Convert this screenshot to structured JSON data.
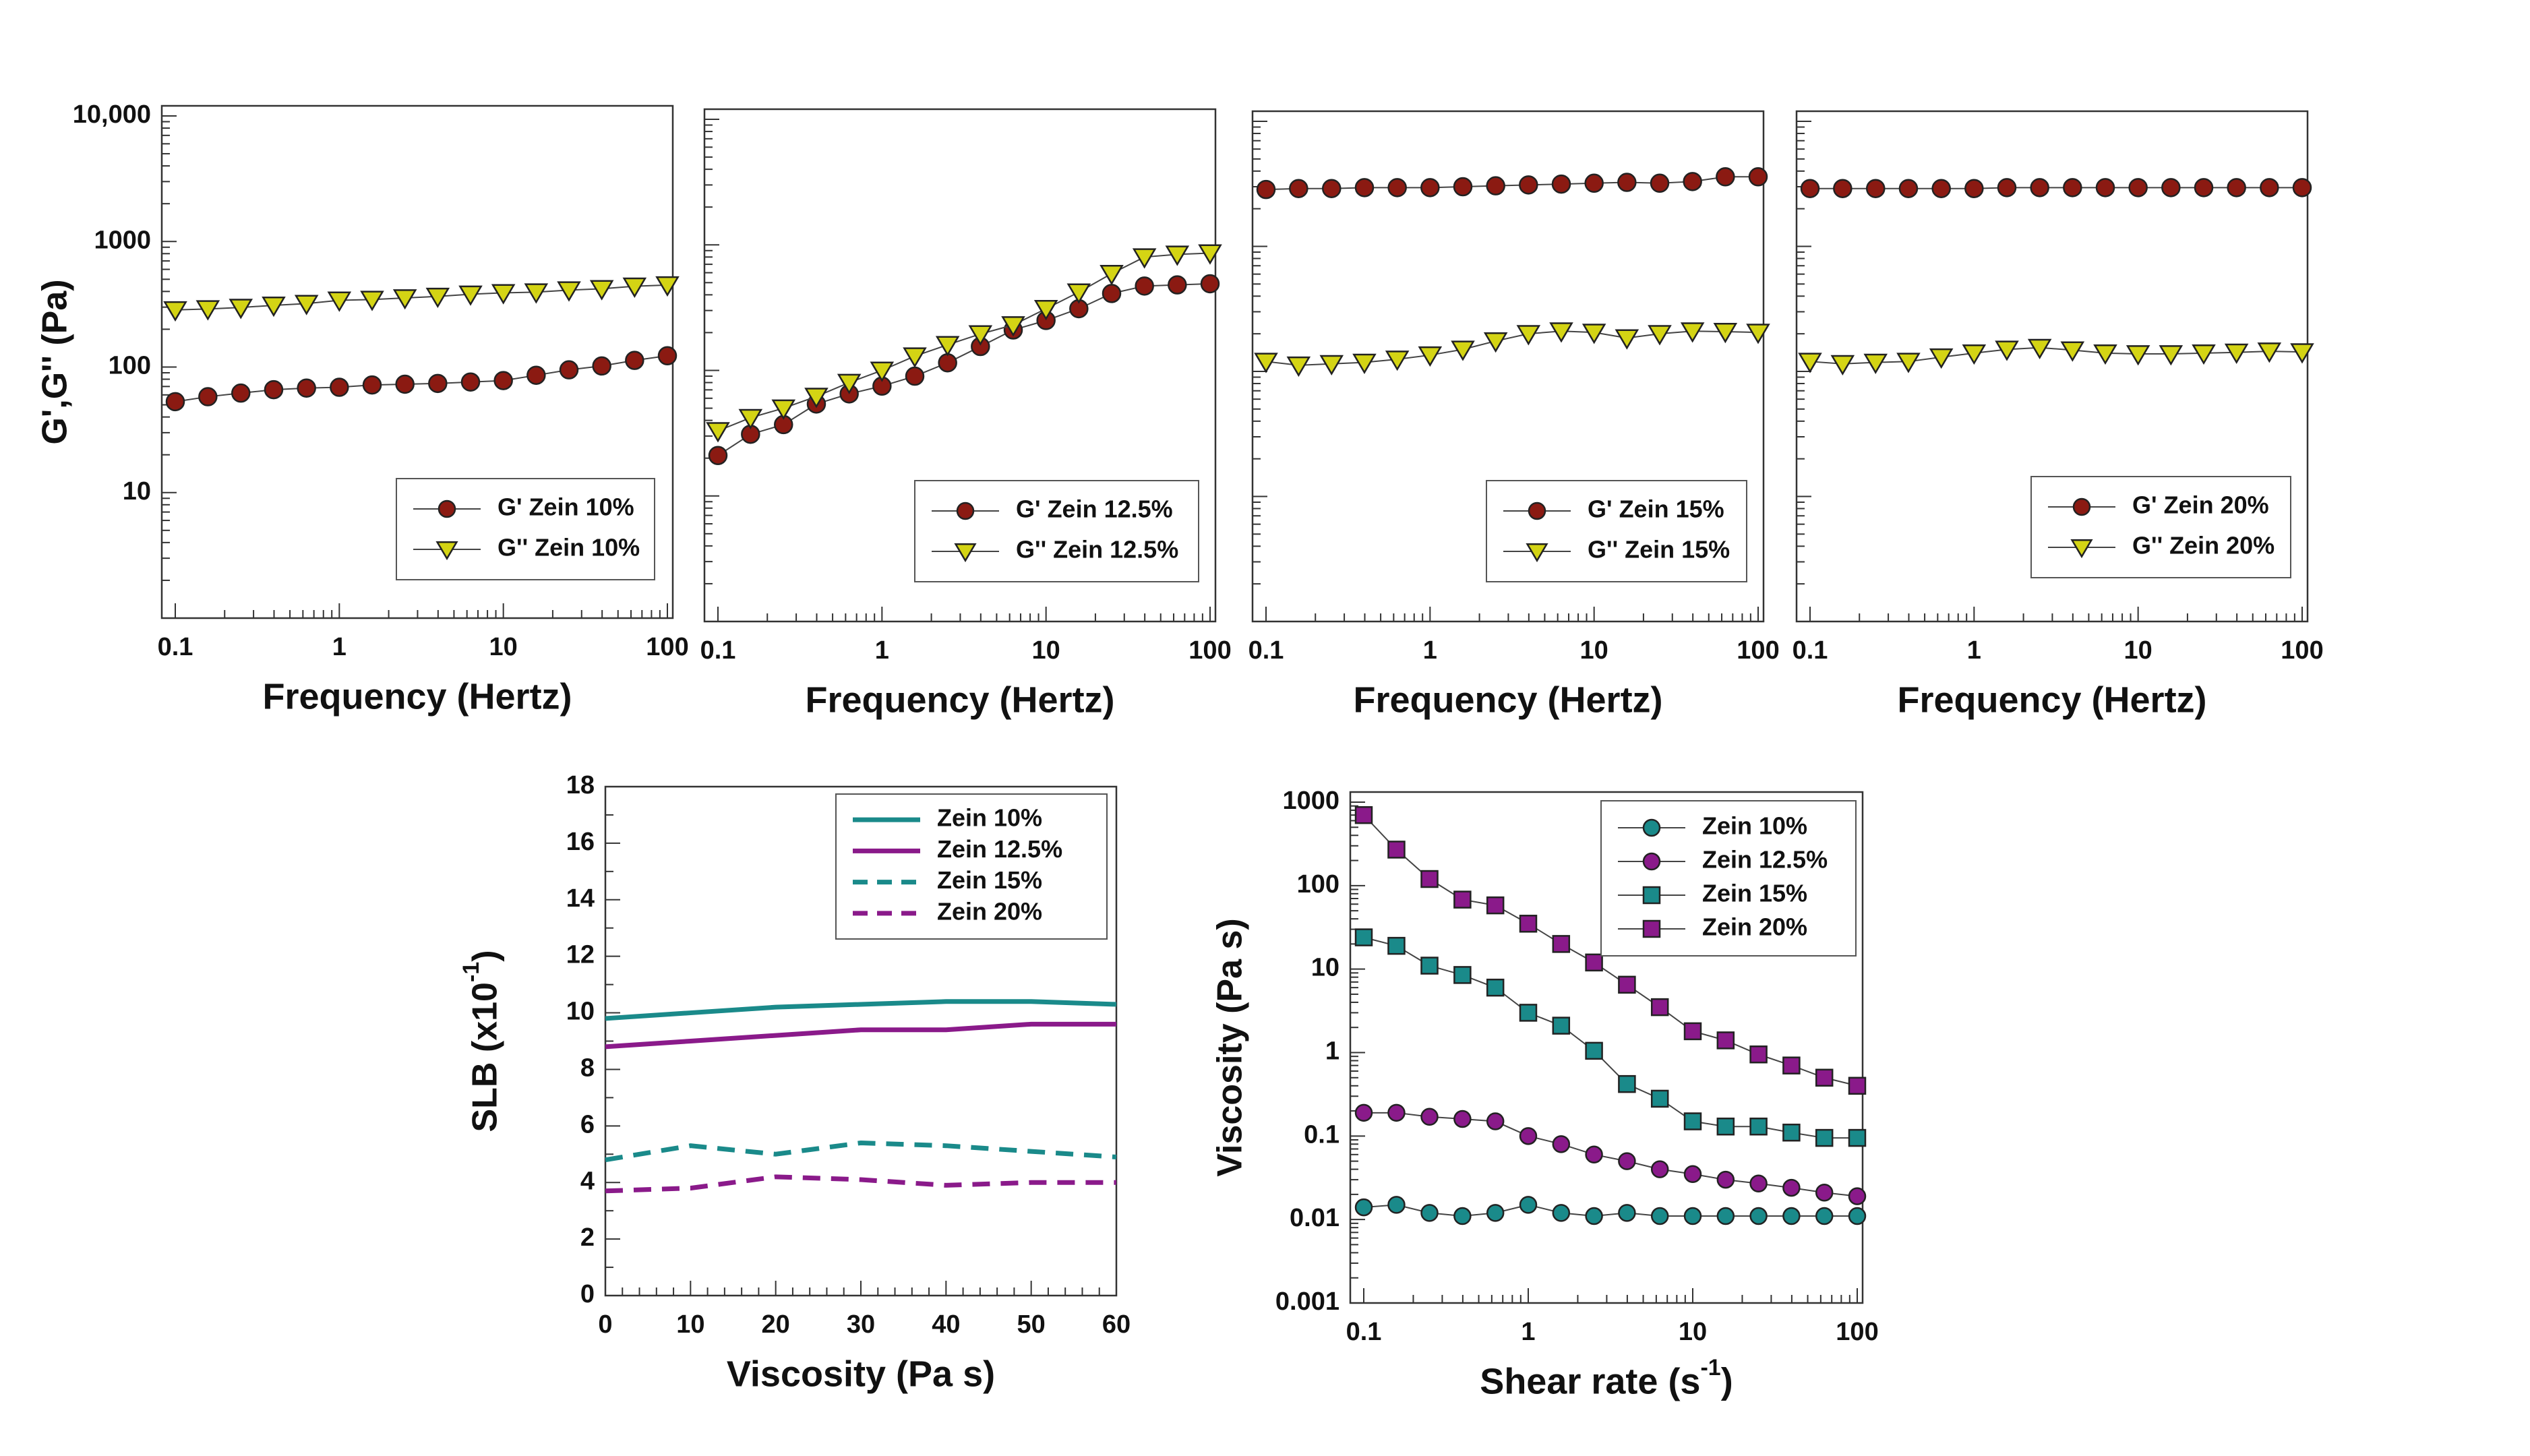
{
  "colors": {
    "gprime": "#8b1a12",
    "gdouble": "#d4d414",
    "teal": "#1a8a8a",
    "purple": "#8a1a8a",
    "axis": "#333333",
    "marker_edge": "#222222"
  },
  "chart_data": [
    {
      "id": "p1",
      "type": "scatter",
      "xscale": "log",
      "yscale": "log",
      "xlim": [
        0.1,
        100
      ],
      "ylim": [
        1,
        10000
      ],
      "xticks": [
        "0.1",
        "1",
        "10",
        "100"
      ],
      "yticks": [
        "10",
        "100",
        "1000",
        "10,000"
      ],
      "xlabel": "Frequency (Hertz)",
      "ylabel": "G',G'' (Pa)",
      "legend": [
        "G' Zein 10%",
        "G'' Zein 10%"
      ],
      "legend_position": "bottom-right",
      "x": [
        0.1,
        0.158,
        0.251,
        0.398,
        0.631,
        1,
        1.585,
        2.512,
        3.981,
        6.31,
        10,
        15.85,
        25.12,
        39.81,
        63.1,
        100
      ],
      "series": [
        {
          "name": "G' Zein 10%",
          "marker": "circle",
          "values": [
            53,
            58,
            62,
            66,
            68,
            69,
            72,
            73,
            74,
            76,
            78,
            86,
            95,
            102,
            113,
            123
          ]
        },
        {
          "name": "G'' Zein 10%",
          "marker": "triangle-down",
          "values": [
            285,
            290,
            298,
            310,
            320,
            340,
            345,
            355,
            365,
            380,
            390,
            395,
            410,
            420,
            440,
            450
          ]
        }
      ]
    },
    {
      "id": "p2",
      "type": "scatter",
      "xscale": "log",
      "yscale": "log",
      "xlim": [
        0.1,
        100
      ],
      "ylim": [
        1,
        10000
      ],
      "xticks": [
        "0.1",
        "1",
        "10",
        "100"
      ],
      "xlabel": "Frequency (Hertz)",
      "legend": [
        "G' Zein 12.5%",
        "G'' Zein 12.5%"
      ],
      "legend_position": "bottom-right",
      "x": [
        0.1,
        0.158,
        0.251,
        0.398,
        0.631,
        1,
        1.585,
        2.512,
        3.981,
        6.31,
        10,
        15.85,
        25.12,
        39.81,
        63.1,
        100
      ],
      "series": [
        {
          "name": "G' Zein 12.5%",
          "marker": "circle",
          "values": [
            21,
            31,
            37,
            54,
            65,
            75,
            90,
            115,
            155,
            210,
            250,
            310,
            410,
            470,
            480,
            490
          ]
        },
        {
          "name": "G'' Zein 12.5%",
          "marker": "triangle-down",
          "values": [
            33,
            42,
            50,
            62,
            80,
            100,
            130,
            160,
            195,
            230,
            310,
            420,
            590,
            800,
            840,
            860
          ]
        }
      ]
    },
    {
      "id": "p3",
      "type": "scatter",
      "xscale": "log",
      "yscale": "log",
      "xlim": [
        0.1,
        100
      ],
      "ylim": [
        1,
        10000
      ],
      "xticks": [
        "0.1",
        "1",
        "10",
        "100"
      ],
      "xlabel": "Frequency (Hertz)",
      "legend": [
        "G' Zein 15%",
        "G'' Zein 15%"
      ],
      "legend_position": "bottom-right",
      "x": [
        0.1,
        0.158,
        0.251,
        0.398,
        0.631,
        1,
        1.585,
        2.512,
        3.981,
        6.31,
        10,
        15.85,
        25.12,
        39.81,
        63.1,
        100
      ],
      "series": [
        {
          "name": "G' Zein 15%",
          "marker": "circle",
          "values": [
            2850,
            2900,
            2900,
            2950,
            2950,
            2950,
            3000,
            3050,
            3100,
            3150,
            3200,
            3250,
            3200,
            3300,
            3600,
            3600
          ]
        },
        {
          "name": "G'' Zein 15%",
          "marker": "triangle-down",
          "values": [
            120,
            112,
            115,
            118,
            125,
            135,
            150,
            175,
            200,
            210,
            205,
            185,
            200,
            210,
            208,
            205
          ]
        }
      ]
    },
    {
      "id": "p4",
      "type": "scatter",
      "xscale": "log",
      "yscale": "log",
      "xlim": [
        0.1,
        100
      ],
      "ylim": [
        1,
        10000
      ],
      "xticks": [
        "0.1",
        "1",
        "10",
        "100"
      ],
      "xlabel": "Frequency (Hertz)",
      "legend": [
        "G' Zein 20%",
        "G'' Zein 20%"
      ],
      "legend_position": "bottom-right",
      "x": [
        0.1,
        0.158,
        0.251,
        0.398,
        0.631,
        1,
        1.585,
        2.512,
        3.981,
        6.31,
        10,
        15.85,
        25.12,
        39.81,
        63.1,
        100
      ],
      "series": [
        {
          "name": "G' Zein 20%",
          "marker": "circle",
          "values": [
            2900,
            2900,
            2900,
            2900,
            2900,
            2900,
            2950,
            2950,
            2950,
            2950,
            2950,
            2950,
            2950,
            2950,
            2950,
            2950
          ]
        },
        {
          "name": "G'' Zein 20%",
          "marker": "triangle-down",
          "values": [
            120,
            115,
            118,
            120,
            130,
            140,
            150,
            155,
            148,
            140,
            138,
            138,
            140,
            142,
            145,
            143
          ]
        }
      ]
    },
    {
      "id": "p5",
      "type": "line",
      "xscale": "linear",
      "yscale": "linear",
      "xlim": [
        0,
        60
      ],
      "ylim": [
        0,
        18
      ],
      "xticks": [
        "0",
        "10",
        "20",
        "30",
        "40",
        "50",
        "60"
      ],
      "yticks": [
        "0",
        "2",
        "4",
        "6",
        "8",
        "10",
        "12",
        "14",
        "16",
        "18"
      ],
      "xlabel": "Viscosity (Pa s)",
      "ylabel": "SLB (x10",
      "ylabel_sup": "-1",
      "ylabel_end": ")",
      "legend": [
        "Zein 10%",
        "Zein 12.5%",
        "Zein 15%",
        "Zein 20%"
      ],
      "legend_position": "top-right",
      "series": [
        {
          "name": "Zein 10%",
          "style": "solid",
          "x": [
            0,
            10,
            20,
            30,
            40,
            50,
            60
          ],
          "values": [
            9.8,
            10.0,
            10.2,
            10.3,
            10.4,
            10.4,
            10.3
          ]
        },
        {
          "name": "Zein 12.5%",
          "style": "solid",
          "x": [
            0,
            10,
            20,
            30,
            40,
            50,
            60
          ],
          "values": [
            8.8,
            9.0,
            9.2,
            9.4,
            9.4,
            9.6,
            9.6
          ]
        },
        {
          "name": "Zein 15%",
          "style": "dashed",
          "x": [
            0,
            10,
            20,
            30,
            40,
            50,
            60
          ],
          "values": [
            4.8,
            5.3,
            5.0,
            5.4,
            5.3,
            5.1,
            4.9
          ]
        },
        {
          "name": "Zein 20%",
          "style": "dashed",
          "x": [
            0,
            10,
            20,
            30,
            40,
            50,
            60
          ],
          "values": [
            3.7,
            3.8,
            4.2,
            4.1,
            3.9,
            4.0,
            4.0
          ]
        }
      ]
    },
    {
      "id": "p6",
      "type": "line",
      "xscale": "log",
      "yscale": "log",
      "xlim": [
        0.1,
        100
      ],
      "ylim": [
        0.001,
        1000
      ],
      "xticks": [
        "0.1",
        "1",
        "10",
        "100"
      ],
      "yticks": [
        "0.001",
        "0.01",
        "0.1",
        "1",
        "10",
        "100",
        "1000"
      ],
      "xlabel": "Shear rate (s",
      "xlabel_sup": "-1",
      "xlabel_end": ")",
      "ylabel": "Viscosity (Pa s)",
      "legend": [
        "Zein 10%",
        "Zein 12.5%",
        "Zein 15%",
        "Zein 20%"
      ],
      "legend_position": "top-right",
      "x": [
        0.1,
        0.158,
        0.251,
        0.398,
        0.631,
        1,
        1.585,
        2.512,
        3.981,
        6.31,
        10,
        15.85,
        25.12,
        39.81,
        63.1,
        100
      ],
      "series": [
        {
          "name": "Zein 10%",
          "marker": "circle",
          "values": [
            0.014,
            0.015,
            0.012,
            0.011,
            0.012,
            0.015,
            0.012,
            0.011,
            0.012,
            0.011,
            0.011,
            0.011,
            0.011,
            0.011,
            0.011,
            0.011
          ]
        },
        {
          "name": "Zein 12.5%",
          "marker": "circle",
          "values": [
            0.19,
            0.19,
            0.17,
            0.16,
            0.15,
            0.1,
            0.08,
            0.06,
            0.05,
            0.04,
            0.035,
            0.03,
            0.027,
            0.024,
            0.021,
            0.019
          ]
        },
        {
          "name": "Zein 15%",
          "marker": "square",
          "values": [
            24,
            19,
            11,
            8.5,
            6.0,
            3.0,
            2.1,
            1.05,
            0.42,
            0.28,
            0.15,
            0.13,
            0.13,
            0.11,
            0.095,
            0.095
          ]
        },
        {
          "name": "Zein 20%",
          "marker": "square",
          "values": [
            700,
            270,
            120,
            68,
            58,
            35,
            20,
            12,
            6.5,
            3.5,
            1.8,
            1.4,
            0.95,
            0.7,
            0.5,
            0.4
          ]
        }
      ]
    }
  ]
}
